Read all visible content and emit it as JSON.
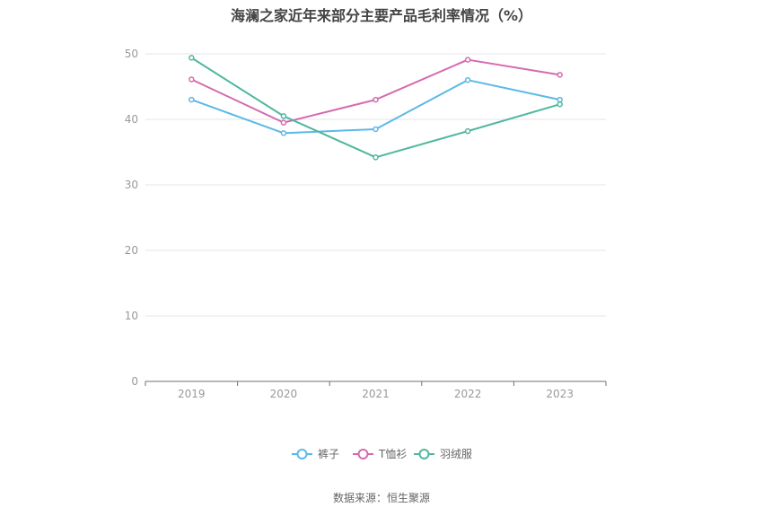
{
  "chart_data": {
    "type": "line",
    "title": "海澜之家近年来部分主要产品毛利率情况（%）",
    "xlabel": "",
    "ylabel": "",
    "x": [
      "2019",
      "2020",
      "2021",
      "2022",
      "2023"
    ],
    "ylim": [
      0,
      50
    ],
    "yticks": [
      0,
      10,
      20,
      30,
      40,
      50
    ],
    "grid": true,
    "legend_position": "bottom",
    "series": [
      {
        "name": "裤子",
        "values": [
          43.0,
          37.9,
          38.5,
          46.0,
          43.0
        ],
        "color": "#5BB9E6"
      },
      {
        "name": "T恤衫",
        "values": [
          46.1,
          39.5,
          43.0,
          49.1,
          46.8
        ],
        "color": "#D46BAF"
      },
      {
        "name": "羽绒服",
        "values": [
          49.4,
          40.5,
          34.2,
          38.2,
          42.3
        ],
        "color": "#4EB89E"
      }
    ]
  },
  "source": "数据来源：恒生聚源"
}
